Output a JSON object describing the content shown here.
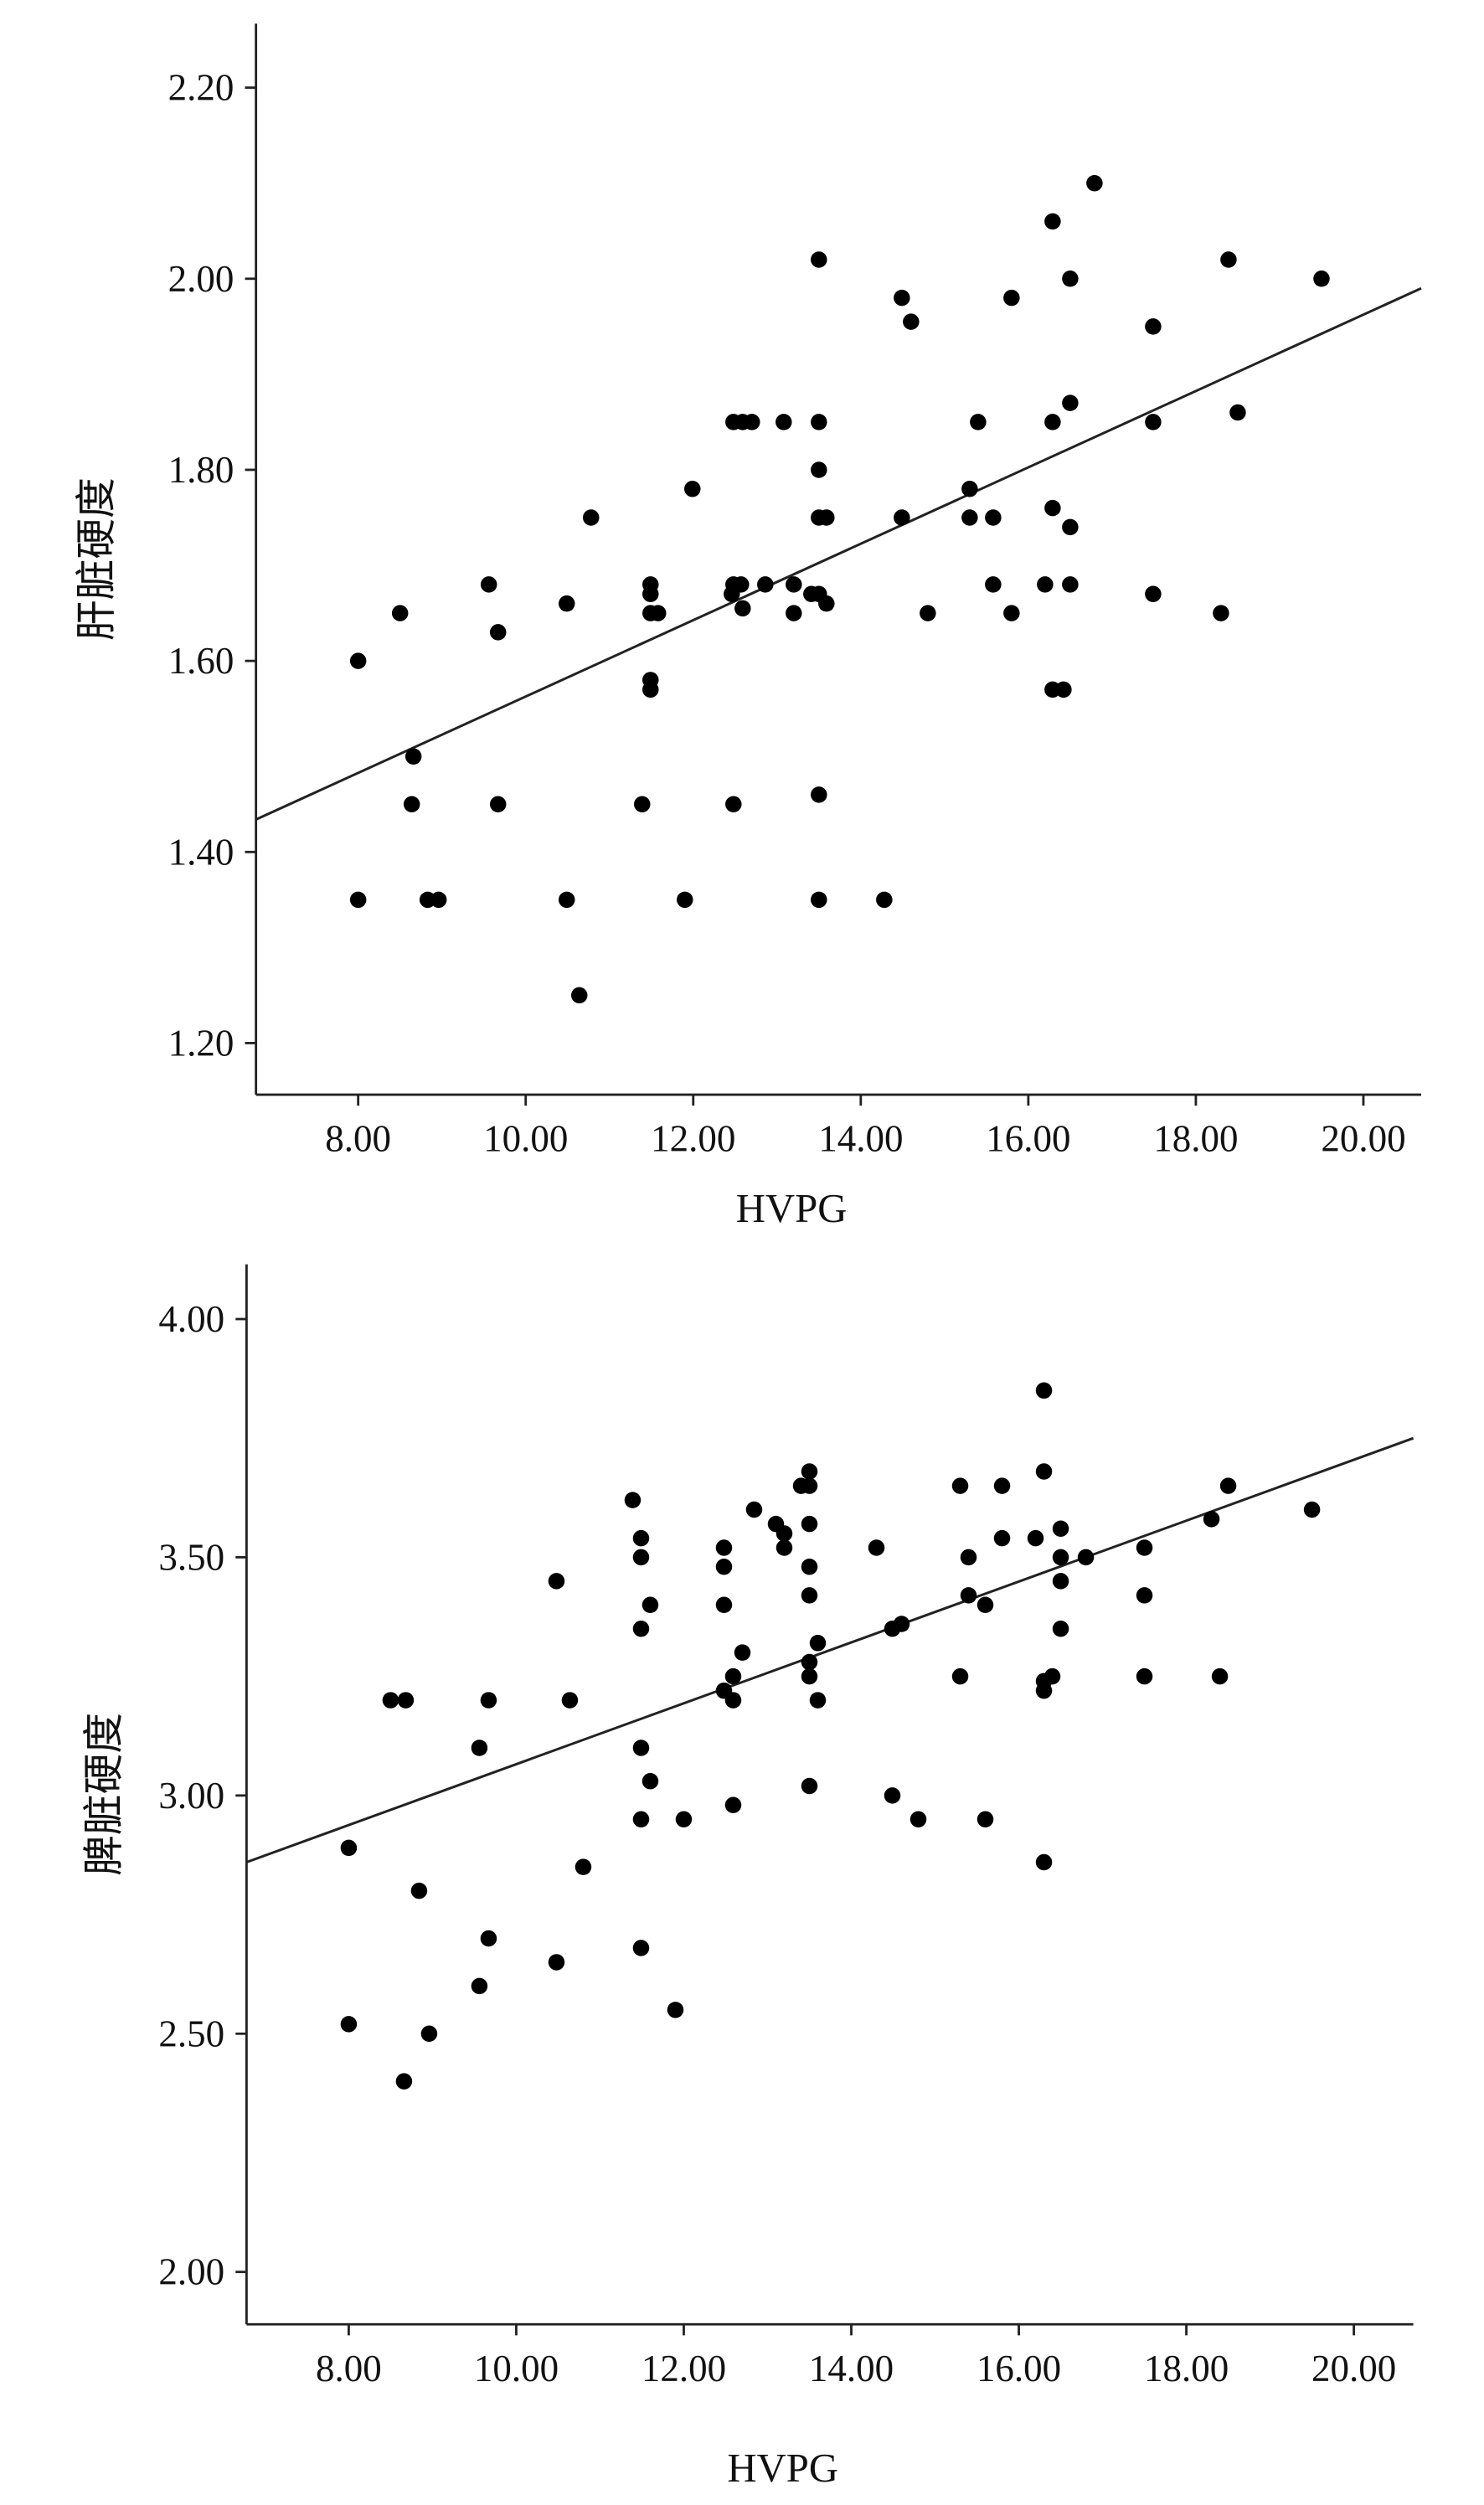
{
  "chart_data": [
    {
      "type": "scatter",
      "title": "",
      "xlabel": "HVPG",
      "ylabel": "肝脏硬度",
      "xlim": [
        6.78,
        20.69
      ],
      "ylim": [
        1.146,
        2.267
      ],
      "xticks": [
        8,
        10,
        12,
        14,
        16,
        18,
        20
      ],
      "xtick_labels": [
        "8.00",
        "10.00",
        "12.00",
        "14.00",
        "16.00",
        "18.00",
        "20.00"
      ],
      "yticks": [
        1.2,
        1.4,
        1.6,
        1.8,
        2.0,
        2.2
      ],
      "ytick_labels": [
        "1.20",
        "1.40",
        "1.60",
        "1.80",
        "2.00",
        "2.20"
      ],
      "grid": false,
      "fit_line": [
        [
          6.78,
          1.434
        ],
        [
          20.69,
          1.99
        ]
      ],
      "points": [
        [
          8.0,
          1.6
        ],
        [
          8.5,
          1.65
        ],
        [
          8.0,
          1.35
        ],
        [
          8.66,
          1.5
        ],
        [
          8.64,
          1.45
        ],
        [
          8.83,
          1.35
        ],
        [
          8.96,
          1.35
        ],
        [
          9.56,
          1.68
        ],
        [
          9.67,
          1.63
        ],
        [
          9.67,
          1.45
        ],
        [
          10.49,
          1.66
        ],
        [
          10.49,
          1.35
        ],
        [
          10.64,
          1.25
        ],
        [
          10.78,
          1.75
        ],
        [
          11.39,
          1.45
        ],
        [
          11.49,
          1.68
        ],
        [
          11.49,
          1.67
        ],
        [
          11.49,
          1.65
        ],
        [
          11.58,
          1.65
        ],
        [
          11.49,
          1.58
        ],
        [
          11.49,
          1.57
        ],
        [
          11.99,
          1.78
        ],
        [
          11.9,
          1.35
        ],
        [
          12.48,
          1.85
        ],
        [
          12.59,
          1.85
        ],
        [
          12.7,
          1.85
        ],
        [
          12.48,
          1.68
        ],
        [
          12.57,
          1.68
        ],
        [
          12.46,
          1.67
        ],
        [
          12.59,
          1.655
        ],
        [
          12.48,
          1.45
        ],
        [
          12.86,
          1.68
        ],
        [
          13.08,
          1.85
        ],
        [
          13.2,
          1.68
        ],
        [
          13.2,
          1.65
        ],
        [
          13.5,
          2.02
        ],
        [
          13.5,
          1.85
        ],
        [
          13.5,
          1.8
        ],
        [
          13.5,
          1.75
        ],
        [
          13.59,
          1.75
        ],
        [
          13.41,
          1.67
        ],
        [
          13.5,
          1.67
        ],
        [
          13.59,
          1.66
        ],
        [
          13.5,
          1.46
        ],
        [
          13.5,
          1.35
        ],
        [
          14.28,
          1.35
        ],
        [
          14.49,
          1.98
        ],
        [
          14.6,
          1.955
        ],
        [
          14.49,
          1.75
        ],
        [
          14.8,
          1.65
        ],
        [
          15.3,
          1.78
        ],
        [
          15.3,
          1.75
        ],
        [
          15.4,
          1.85
        ],
        [
          15.58,
          1.75
        ],
        [
          15.58,
          1.68
        ],
        [
          15.8,
          1.98
        ],
        [
          15.8,
          1.65
        ],
        [
          16.2,
          1.68
        ],
        [
          16.29,
          2.06
        ],
        [
          16.29,
          1.85
        ],
        [
          16.29,
          1.76
        ],
        [
          16.29,
          1.57
        ],
        [
          16.42,
          1.57
        ],
        [
          16.5,
          2.0
        ],
        [
          16.5,
          1.87
        ],
        [
          16.5,
          1.74
        ],
        [
          16.5,
          1.68
        ],
        [
          16.79,
          2.1
        ],
        [
          17.49,
          1.95
        ],
        [
          17.49,
          1.85
        ],
        [
          17.49,
          1.67
        ],
        [
          18.3,
          1.65
        ],
        [
          18.39,
          2.02
        ],
        [
          18.5,
          1.86
        ],
        [
          19.5,
          2.0
        ]
      ]
    },
    {
      "type": "scatter",
      "title": "",
      "xlabel": "HVPG",
      "ylabel": "脾脏硬度",
      "xlim": [
        6.78,
        20.71
      ],
      "ylim": [
        1.89,
        4.115
      ],
      "xticks": [
        8,
        10,
        12,
        14,
        16,
        18,
        20
      ],
      "xtick_labels": [
        "8.00",
        "10.00",
        "12.00",
        "14.00",
        "16.00",
        "18.00",
        "20.00"
      ],
      "yticks": [
        2.0,
        2.5,
        3.0,
        3.5,
        4.0
      ],
      "ytick_labels": [
        "2.00",
        "2.50",
        "3.00",
        "3.50",
        "4.00"
      ],
      "grid": false,
      "fit_line": [
        [
          6.78,
          2.86
        ],
        [
          20.71,
          3.75
        ]
      ],
      "points": [
        [
          8.0,
          2.89
        ],
        [
          8.0,
          2.52
        ],
        [
          8.5,
          3.2
        ],
        [
          8.68,
          3.2
        ],
        [
          8.66,
          2.4
        ],
        [
          8.84,
          2.8
        ],
        [
          8.96,
          2.5
        ],
        [
          9.56,
          3.1
        ],
        [
          9.67,
          3.2
        ],
        [
          9.67,
          2.7
        ],
        [
          9.56,
          2.6
        ],
        [
          10.48,
          3.45
        ],
        [
          10.48,
          2.65
        ],
        [
          10.64,
          3.2
        ],
        [
          10.8,
          2.85
        ],
        [
          11.39,
          3.62
        ],
        [
          11.49,
          3.54
        ],
        [
          11.49,
          3.5
        ],
        [
          11.6,
          3.4
        ],
        [
          11.49,
          3.35
        ],
        [
          11.49,
          3.1
        ],
        [
          11.6,
          3.03
        ],
        [
          11.49,
          2.95
        ],
        [
          11.49,
          2.68
        ],
        [
          11.9,
          2.55
        ],
        [
          12.0,
          2.95
        ],
        [
          12.48,
          3.52
        ],
        [
          12.48,
          3.48
        ],
        [
          12.48,
          3.4
        ],
        [
          12.48,
          3.22
        ],
        [
          12.59,
          3.25
        ],
        [
          12.59,
          3.2
        ],
        [
          12.7,
          3.3
        ],
        [
          12.59,
          2.98
        ],
        [
          12.84,
          3.6
        ],
        [
          13.1,
          3.57
        ],
        [
          13.2,
          3.55
        ],
        [
          13.2,
          3.52
        ],
        [
          13.4,
          3.65
        ],
        [
          13.5,
          3.68
        ],
        [
          13.5,
          3.65
        ],
        [
          13.5,
          3.57
        ],
        [
          13.5,
          3.48
        ],
        [
          13.5,
          3.42
        ],
        [
          13.5,
          3.28
        ],
        [
          13.5,
          3.25
        ],
        [
          13.6,
          3.32
        ],
        [
          13.6,
          3.2
        ],
        [
          13.5,
          3.02
        ],
        [
          14.3,
          3.52
        ],
        [
          14.49,
          3.35
        ],
        [
          14.6,
          3.36
        ],
        [
          14.49,
          3.0
        ],
        [
          14.8,
          2.95
        ],
        [
          15.3,
          3.65
        ],
        [
          15.4,
          3.5
        ],
        [
          15.4,
          3.42
        ],
        [
          15.3,
          3.25
        ],
        [
          15.6,
          3.4
        ],
        [
          15.6,
          2.95
        ],
        [
          15.8,
          3.65
        ],
        [
          15.8,
          3.54
        ],
        [
          16.2,
          3.54
        ],
        [
          16.3,
          3.85
        ],
        [
          16.3,
          3.68
        ],
        [
          16.3,
          3.24
        ],
        [
          16.3,
          3.22
        ],
        [
          16.4,
          3.25
        ],
        [
          16.3,
          2.86
        ],
        [
          16.5,
          3.56
        ],
        [
          16.5,
          3.5
        ],
        [
          16.5,
          3.45
        ],
        [
          16.5,
          3.35
        ],
        [
          16.8,
          3.5
        ],
        [
          17.5,
          3.52
        ],
        [
          17.5,
          3.42
        ],
        [
          17.5,
          3.25
        ],
        [
          18.3,
          3.58
        ],
        [
          18.5,
          3.65
        ],
        [
          18.4,
          3.25
        ],
        [
          19.5,
          3.6
        ]
      ]
    }
  ]
}
